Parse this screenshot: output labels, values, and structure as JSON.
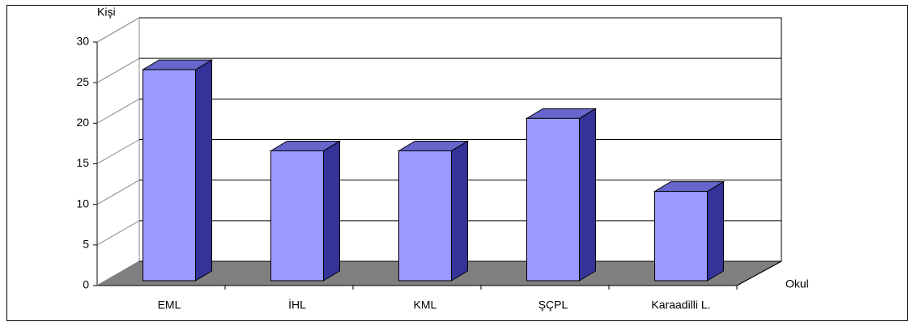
{
  "chart_data": {
    "type": "bar",
    "y_label": "Kişi",
    "x_label": "Okul",
    "categories": [
      "EML",
      "İHL",
      "KML",
      "ŞÇPL",
      "Karaadilli L."
    ],
    "values": [
      26,
      16,
      16,
      20,
      11
    ],
    "color": "#9999ff",
    "ylim": [
      0,
      30
    ],
    "yticks": [
      0,
      5,
      10,
      15,
      20,
      25,
      30
    ],
    "grid": true
  }
}
